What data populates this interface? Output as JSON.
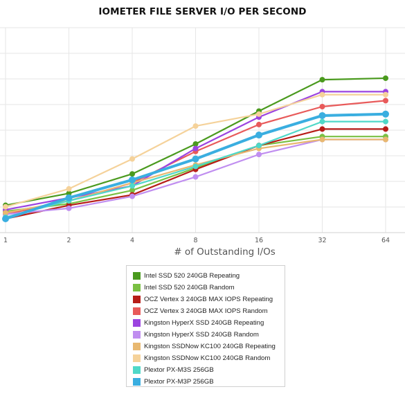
{
  "chart_data": {
    "type": "line",
    "title": "IOMETER FILE SERVER I/O PER SECOND",
    "xlabel": "# of Outstanding I/Os",
    "ylabel": "",
    "categories": [
      "1",
      "2",
      "4",
      "8",
      "16",
      "32",
      "64"
    ],
    "y_tick_labels_visible": false,
    "legend_position": "bottom",
    "series": [
      {
        "name": "Intel SSD 520 240GB Repeating",
        "color": "#4a9a1e",
        "values": [
          0.9,
          1.7,
          3.0,
          5.0,
          7.2,
          9.3,
          9.4
        ]
      },
      {
        "name": "Intel SSD 520 240GB Random",
        "color": "#7ac043",
        "values": [
          0.5,
          1.0,
          1.9,
          3.4,
          4.9,
          5.5,
          5.5
        ]
      },
      {
        "name": "OCZ Vertex 3 240GB MAX IOPS Repeating",
        "color": "#b71d18",
        "values": [
          0.0,
          0.9,
          1.6,
          3.3,
          4.9,
          6.0,
          6.0
        ]
      },
      {
        "name": "OCZ Vertex 3 240GB MAX IOPS Random",
        "color": "#e85a5a",
        "values": [
          0.3,
          1.2,
          2.4,
          4.5,
          6.3,
          7.5,
          7.9
        ]
      },
      {
        "name": "Kingston HyperX SSD 240GB Repeating",
        "color": "#9b44e0",
        "values": [
          0.6,
          1.4,
          2.2,
          4.7,
          6.8,
          8.5,
          8.5
        ]
      },
      {
        "name": "Kingston HyperX SSD 240GB Random",
        "color": "#c08ef0",
        "values": [
          0.3,
          0.7,
          1.5,
          2.8,
          4.3,
          5.3,
          5.3
        ]
      },
      {
        "name": "Kingston SSDNow KC100 240GB Repeating",
        "color": "#e8b870",
        "values": [
          0.4,
          1.2,
          2.4,
          3.6,
          4.7,
          5.3,
          5.3
        ]
      },
      {
        "name": "Kingston SSDNow KC100 240GB Random",
        "color": "#f5d29a",
        "values": [
          0.8,
          2.0,
          4.0,
          6.2,
          7.0,
          8.3,
          8.3
        ]
      },
      {
        "name": "Plextor PX-M3S 256GB",
        "color": "#4fd8c8",
        "values": [
          0.1,
          1.2,
          2.2,
          3.5,
          4.9,
          6.5,
          6.5
        ]
      },
      {
        "name": "Plextor PX-M3P 256GB",
        "color": "#3aaee0",
        "values": [
          0.0,
          1.4,
          2.6,
          4.0,
          5.6,
          6.9,
          7.0
        ]
      }
    ]
  }
}
